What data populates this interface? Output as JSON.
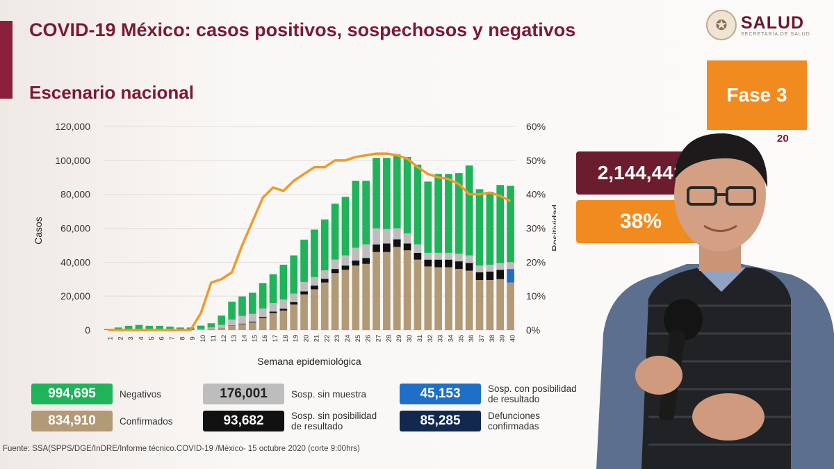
{
  "header": {
    "title": "COVID-19 México: casos positivos, sospechosos y negativos",
    "subtitle": "Escenario nacional",
    "logo_text": "SALUD",
    "logo_subtext": "SECRETARÍA DE SALUD"
  },
  "side": {
    "phase_label": "Fase 3",
    "date_fragment": "20",
    "total_value": "2,144,441",
    "positivity_value": "38%"
  },
  "legend": [
    {
      "value": "994,695",
      "label": "Negativos",
      "color": "#1fb35a"
    },
    {
      "value": "834,910",
      "label": "Confirmados",
      "color": "#b29a76"
    },
    {
      "value": "176,001",
      "label": "Sosp. sin muestra",
      "color": "#bdbdbd"
    },
    {
      "value": "93,682",
      "label": "Sosp. sin posibilidad de resultado",
      "color": "#111111"
    },
    {
      "value": "45,153",
      "label": "Sosp. con posibilidad de resultado",
      "color": "#1f6fc6"
    },
    {
      "value": "85,285",
      "label": "Defunciones confirmadas",
      "color": "#12284f"
    }
  ],
  "footer": {
    "source": "Fuente: SSA(SPPS/DGE/InDRE/Informe técnico.COVID-19 /México- 15 octubre 2020 (corte 9:00hrs)"
  },
  "chart_data": {
    "type": "bar",
    "xlabel": "Semana epidemiológica",
    "ylabel": "Casos",
    "y2label": "Positividad",
    "ylim": [
      0,
      120000
    ],
    "y2lim": [
      0,
      60
    ],
    "yticks": [
      "0",
      "20,000",
      "40,000",
      "60,000",
      "80,000",
      "100,000",
      "120,000"
    ],
    "y2ticks": [
      "0%",
      "10%",
      "20%",
      "30%",
      "40%",
      "50%",
      "60%"
    ],
    "categories": [
      "1",
      "2",
      "3",
      "4",
      "5",
      "6",
      "7",
      "8",
      "9",
      "10",
      "11",
      "12",
      "13",
      "14",
      "15",
      "16",
      "17",
      "18",
      "19",
      "20",
      "21",
      "22",
      "23",
      "24",
      "25",
      "26",
      "27",
      "28",
      "29",
      "30",
      "31",
      "32",
      "33",
      "34",
      "35",
      "36",
      "37",
      "38",
      "39",
      "40"
    ],
    "series": [
      {
        "name": "Confirmados",
        "color": "#b29a76",
        "values": [
          0,
          0,
          0,
          0,
          0,
          0,
          0,
          0,
          0,
          300,
          800,
          1500,
          2500,
          3500,
          4500,
          7000,
          10000,
          11500,
          15000,
          21000,
          24000,
          28000,
          33500,
          35500,
          38000,
          39000,
          46000,
          46000,
          49000,
          47000,
          41500,
          37500,
          37000,
          37000,
          36000,
          35000,
          29500,
          29500,
          30000,
          28000
        ]
      },
      {
        "name": "Sosp. sin posibilidad de resultado",
        "color": "#111111",
        "values": [
          0,
          0,
          0,
          0,
          0,
          0,
          0,
          0,
          0,
          0,
          0,
          0,
          200,
          300,
          500,
          700,
          900,
          1000,
          1500,
          1800,
          2200,
          2200,
          2500,
          2500,
          3000,
          3500,
          4500,
          5000,
          4500,
          4000,
          4000,
          4000,
          4500,
          4500,
          4500,
          4500,
          4500,
          5000,
          5500,
          0
        ]
      },
      {
        "name": "Sosp. con posibilidad de resultado",
        "color": "#1f6fc6",
        "values": [
          0,
          0,
          0,
          0,
          0,
          0,
          0,
          0,
          0,
          0,
          0,
          0,
          0,
          0,
          0,
          0,
          0,
          0,
          0,
          0,
          0,
          0,
          0,
          0,
          0,
          0,
          0,
          0,
          0,
          0,
          0,
          0,
          0,
          0,
          0,
          0,
          0,
          0,
          0,
          8000
        ]
      },
      {
        "name": "Sosp. sin muestra",
        "color": "#bdbdbd",
        "values": [
          0,
          0,
          0,
          0,
          0,
          0,
          0,
          0,
          0,
          300,
          700,
          1500,
          3500,
          4500,
          4500,
          5000,
          5000,
          5500,
          5000,
          5500,
          5000,
          5000,
          5500,
          6000,
          7500,
          8000,
          9500,
          8500,
          6500,
          6000,
          5000,
          4000,
          4000,
          4000,
          4500,
          4500,
          4000,
          4000,
          4000,
          4000
        ]
      },
      {
        "name": "Negativos",
        "color": "#1fb35a",
        "values": [
          500,
          1500,
          2500,
          3000,
          2500,
          2500,
          2000,
          1500,
          1500,
          2000,
          2500,
          5500,
          10500,
          11500,
          12500,
          15000,
          17000,
          20500,
          22500,
          25000,
          28000,
          30000,
          33000,
          34500,
          39500,
          37500,
          41500,
          42000,
          43500,
          45000,
          47000,
          42000,
          46500,
          46500,
          47500,
          53000,
          45000,
          43000,
          46000,
          45000
        ]
      }
    ],
    "line": {
      "name": "Positividad",
      "color": "#ef9a2a",
      "unit": "%",
      "values": [
        0,
        0,
        0,
        0,
        0,
        0,
        0,
        0,
        0,
        5,
        14,
        15,
        17,
        25,
        32,
        39,
        42,
        41,
        44,
        46,
        48,
        48,
        50,
        50,
        51,
        51.5,
        52,
        52,
        51.5,
        50.5,
        48,
        46,
        45,
        44.5,
        43,
        40,
        40,
        40.5,
        39.5,
        38
      ]
    }
  }
}
